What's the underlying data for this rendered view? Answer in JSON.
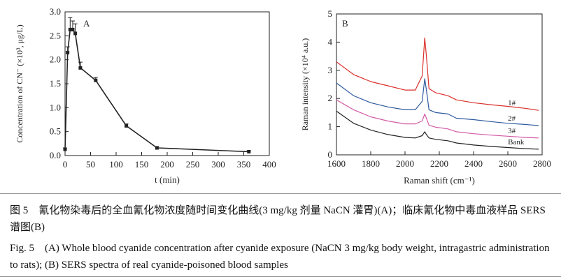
{
  "colors": {
    "background": "#ffffff",
    "axis": "#222222",
    "panel_a_line": "#222222",
    "spec_1": "#d9302c",
    "spec_2": "#2e5a9e",
    "spec_3": "#d15aa6",
    "spec_bank": "#222222"
  },
  "chart_data": [
    {
      "type": "line",
      "panel_label": "A",
      "title": "",
      "xlabel": "t (min)",
      "ylabel": "Concentration of CN⁻ (×10³, μg/L)",
      "xlim": [
        0,
        400
      ],
      "ylim": [
        0,
        3.0
      ],
      "x_ticks": [
        "0",
        "50",
        "100",
        "150",
        "200",
        "250",
        "300",
        "350",
        "400"
      ],
      "y_ticks": [
        "0.0",
        "0.5",
        "1.0",
        "1.5",
        "2.0",
        "2.5",
        "3.0"
      ],
      "grid": false,
      "legend": "none",
      "series": [
        {
          "x": [
            0,
            5,
            10,
            15,
            20,
            30,
            60,
            120,
            180,
            360
          ],
          "y": [
            0.13,
            2.15,
            2.63,
            2.63,
            2.55,
            1.83,
            1.57,
            0.62,
            0.16,
            0.08
          ],
          "error": [
            0.03,
            0.12,
            0.25,
            0.18,
            0.2,
            0.12,
            0.06,
            0.04,
            0.03,
            0.02
          ]
        }
      ]
    },
    {
      "type": "line",
      "panel_label": "B",
      "title": "",
      "xlabel": "Raman shift (cm⁻¹)",
      "ylabel": "Raman intensity (×10⁴ a.u.)",
      "xlim": [
        1600,
        2800
      ],
      "ylim": [
        0,
        5
      ],
      "x_ticks": [
        "1600",
        "1800",
        "2000",
        "2200",
        "2400",
        "2600",
        "2800"
      ],
      "y_ticks": [
        "0",
        "1",
        "2",
        "3",
        "4",
        "5"
      ],
      "grid": false,
      "legend": "labels at right end of curves",
      "series": [
        {
          "name": "1#",
          "x": [
            1600,
            1700,
            1800,
            1900,
            2000,
            2060,
            2100,
            2115,
            2125,
            2140,
            2180,
            2250,
            2300,
            2400,
            2500,
            2600,
            2700,
            2780
          ],
          "y": [
            3.3,
            2.85,
            2.6,
            2.45,
            2.3,
            2.3,
            2.8,
            4.15,
            3.5,
            2.35,
            2.2,
            2.1,
            1.95,
            1.85,
            1.78,
            1.72,
            1.65,
            1.58
          ]
        },
        {
          "name": "2#",
          "x": [
            1600,
            1700,
            1800,
            1900,
            2000,
            2060,
            2100,
            2115,
            2125,
            2140,
            2180,
            2250,
            2300,
            2400,
            2500,
            2600,
            2700,
            2780
          ],
          "y": [
            2.55,
            2.1,
            1.85,
            1.7,
            1.6,
            1.6,
            1.9,
            2.7,
            2.3,
            1.6,
            1.5,
            1.45,
            1.3,
            1.25,
            1.18,
            1.12,
            1.08,
            1.04
          ]
        },
        {
          "name": "3#",
          "x": [
            1600,
            1700,
            1800,
            1900,
            2000,
            2060,
            2100,
            2115,
            2125,
            2140,
            2180,
            2250,
            2300,
            2400,
            2500,
            2600,
            2700,
            2780
          ],
          "y": [
            1.95,
            1.6,
            1.35,
            1.2,
            1.1,
            1.1,
            1.2,
            1.45,
            1.3,
            1.05,
            0.98,
            0.92,
            0.82,
            0.75,
            0.7,
            0.66,
            0.62,
            0.6
          ]
        },
        {
          "name": "Bank",
          "x": [
            1600,
            1700,
            1800,
            1900,
            2000,
            2060,
            2100,
            2115,
            2125,
            2140,
            2180,
            2250,
            2300,
            2400,
            2500,
            2600,
            2700,
            2780
          ],
          "y": [
            1.55,
            1.12,
            0.88,
            0.72,
            0.62,
            0.6,
            0.68,
            0.82,
            0.72,
            0.6,
            0.55,
            0.5,
            0.42,
            0.35,
            0.3,
            0.26,
            0.22,
            0.2
          ]
        }
      ]
    }
  ],
  "caption": {
    "cn": "图 5　氰化物染毒后的全血氰化物浓度随时间变化曲线(3 mg/kg 剂量 NaCN 灌胃)(A)；临床氰化物中毒血液样品 SERS 谱图(B)",
    "en": "Fig. 5　(A) Whole blood cyanide concentration after cyanide exposure (NaCN 3 mg/kg body weight, intragastric administration to rats); (B) SERS spectra of real cyanide-poisoned blood samples"
  }
}
